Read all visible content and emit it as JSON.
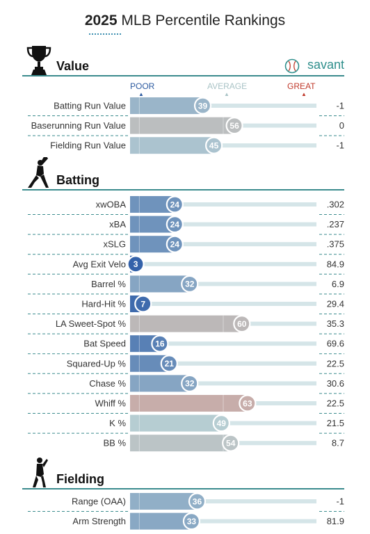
{
  "header": {
    "year": "2025",
    "title": "MLB Percentile Rankings"
  },
  "brand": {
    "name": "savant"
  },
  "scale": {
    "poor": "POOR",
    "average": "AVERAGE",
    "great": "GREAT"
  },
  "sections": [
    {
      "id": "value",
      "label": "Value",
      "icon": "trophy-icon"
    },
    {
      "id": "batting",
      "label": "Batting",
      "icon": "batter-silhouette-icon"
    },
    {
      "id": "fielding",
      "label": "Fielding",
      "icon": "fielder-silhouette-icon"
    }
  ],
  "colors": {
    "poor": "#2c5aa0",
    "average_gray": "#bbbbbb",
    "great": "#c0392b",
    "track": "#d6e6ea",
    "divider": "#3a8b8d",
    "dashed": "#3a8b8d"
  },
  "chart_data": {
    "type": "bar",
    "title": "2025 MLB Percentile Rankings",
    "xlim": [
      0,
      100
    ],
    "groups": [
      {
        "name": "Value",
        "metrics": [
          {
            "label": "Batting Run Value",
            "percentile": 39,
            "value": "-1"
          },
          {
            "label": "Baserunning Run Value",
            "percentile": 56,
            "value": "0"
          },
          {
            "label": "Fielding Run Value",
            "percentile": 45,
            "value": "-1"
          }
        ]
      },
      {
        "name": "Batting",
        "metrics": [
          {
            "label": "xwOBA",
            "percentile": 24,
            "value": ".302"
          },
          {
            "label": "xBA",
            "percentile": 24,
            "value": ".237"
          },
          {
            "label": "xSLG",
            "percentile": 24,
            "value": ".375"
          },
          {
            "label": "Avg Exit Velo",
            "percentile": 3,
            "value": "84.9"
          },
          {
            "label": "Barrel %",
            "percentile": 32,
            "value": "6.9"
          },
          {
            "label": "Hard-Hit %",
            "percentile": 7,
            "value": "29.4"
          },
          {
            "label": "LA Sweet-Spot %",
            "percentile": 60,
            "value": "35.3"
          },
          {
            "label": "Bat Speed",
            "percentile": 16,
            "value": "69.6"
          },
          {
            "label": "Squared-Up %",
            "percentile": 21,
            "value": "22.5"
          },
          {
            "label": "Chase %",
            "percentile": 32,
            "value": "30.6"
          },
          {
            "label": "Whiff %",
            "percentile": 63,
            "value": "22.5"
          },
          {
            "label": "K %",
            "percentile": 49,
            "value": "21.5"
          },
          {
            "label": "BB %",
            "percentile": 54,
            "value": "8.7"
          }
        ]
      },
      {
        "name": "Fielding",
        "metrics": [
          {
            "label": "Range (OAA)",
            "percentile": 36,
            "value": "-1"
          },
          {
            "label": "Arm Strength",
            "percentile": 33,
            "value": "81.9"
          }
        ]
      }
    ]
  }
}
